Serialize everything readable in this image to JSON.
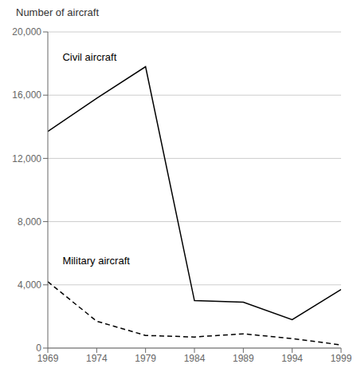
{
  "chart_data": {
    "type": "line",
    "y_label": "Number of aircraft",
    "x": [
      1969,
      1974,
      1979,
      1984,
      1989,
      1994,
      1999
    ],
    "series": [
      {
        "name": "Civil aircraft",
        "color": "#000000",
        "line_style": "solid",
        "values": [
          13700,
          15800,
          17800,
          3000,
          2900,
          1800,
          3700
        ]
      },
      {
        "name": "Military aircraft",
        "color": "#000000",
        "line_style": "dashed",
        "values": [
          4200,
          1700,
          800,
          700,
          900,
          600,
          200
        ]
      }
    ],
    "annotations": [
      {
        "text": "Civil aircraft",
        "x": 1970.5,
        "y": 18200
      },
      {
        "text": "Military aircraft",
        "x": 1970.5,
        "y": 5300
      }
    ],
    "xlim": [
      1969,
      1999
    ],
    "xticks": [
      1969,
      1974,
      1979,
      1984,
      1989,
      1994,
      1999
    ],
    "ylim": [
      0,
      20000
    ],
    "yticks": [
      0,
      {
        "value": 4000,
        "label": "4,000"
      },
      {
        "value": 8000,
        "label": "8,000"
      },
      {
        "value": 12000,
        "label": "12,000"
      },
      {
        "value": 16000,
        "label": "16,000"
      },
      {
        "value": 20000,
        "label": "20,000"
      }
    ],
    "grid": true
  }
}
